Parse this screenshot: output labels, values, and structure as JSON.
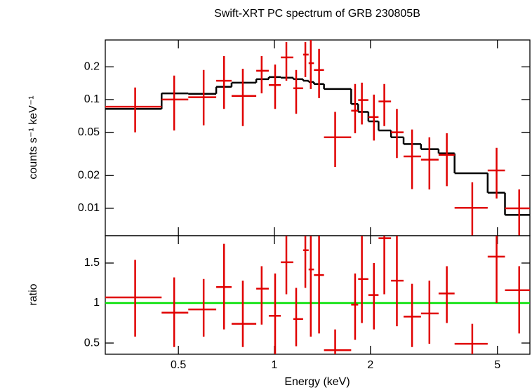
{
  "chart_data": [
    {
      "type": "scatter",
      "title": "Swift-XRT PC spectrum of GRB 230805B",
      "ylabel": "counts s⁻¹ keV⁻¹",
      "xlog": true,
      "ylog": true,
      "xlim": [
        0.295,
        6.32
      ],
      "ylim": [
        0.0056,
        0.353
      ],
      "xticks": [
        0.5,
        1,
        2,
        5
      ],
      "yticks": [
        0.01,
        0.02,
        0.05,
        0.1,
        0.2
      ],
      "data": {
        "color": "#e00000",
        "x": [
          0.366,
          0.485,
          0.6,
          0.695,
          0.796,
          0.912,
          1.005,
          1.09,
          1.17,
          1.25,
          1.3,
          1.38,
          1.55,
          1.79,
          1.88,
          2.05,
          2.21,
          2.42,
          2.7,
          3.06,
          3.47,
          4.17,
          4.97,
          5.85
        ],
        "xmin": [
          0.295,
          0.443,
          0.537,
          0.657,
          0.734,
          0.877,
          0.96,
          1.047,
          1.146,
          1.23,
          1.28,
          1.33,
          1.43,
          1.74,
          1.83,
          1.97,
          2.12,
          2.32,
          2.54,
          2.88,
          3.27,
          3.67,
          4.66,
          5.28
        ],
        "xmax": [
          0.443,
          0.537,
          0.657,
          0.734,
          0.877,
          0.96,
          1.047,
          1.146,
          1.23,
          1.28,
          1.33,
          1.43,
          1.74,
          1.83,
          1.97,
          2.12,
          2.32,
          2.54,
          2.88,
          3.27,
          3.67,
          4.66,
          5.28,
          6.32
        ],
        "values": [
          0.086,
          0.1,
          0.105,
          0.149,
          0.108,
          0.184,
          0.136,
          0.244,
          0.127,
          0.259,
          0.216,
          0.187,
          0.045,
          0.079,
          0.099,
          0.069,
          0.096,
          0.05,
          0.03,
          0.028,
          0.031,
          0.0101,
          0.0223,
          0.01
        ],
        "ylow": [
          0.05,
          0.052,
          0.058,
          0.082,
          0.057,
          0.114,
          0.082,
          0.149,
          0.074,
          0.161,
          0.125,
          0.103,
          0.024,
          0.049,
          0.059,
          0.042,
          0.057,
          0.029,
          0.015,
          0.0149,
          0.016,
          0.0056,
          0.0123,
          0.0056
        ],
        "yhigh": [
          0.129,
          0.166,
          0.187,
          0.251,
          0.192,
          0.251,
          0.21,
          0.338,
          0.187,
          0.338,
          0.364,
          0.292,
          0.077,
          0.139,
          0.143,
          0.111,
          0.139,
          0.082,
          0.053,
          0.045,
          0.049,
          0.0173,
          0.036,
          0.0149
        ]
      },
      "model": {
        "color": "#000000",
        "values": [
          0.082,
          0.114,
          0.113,
          0.131,
          0.143,
          0.154,
          0.161,
          0.159,
          0.154,
          0.149,
          0.145,
          0.139,
          0.125,
          0.091,
          0.077,
          0.063,
          0.052,
          0.045,
          0.039,
          0.035,
          0.032,
          0.021,
          0.0139,
          0.0087
        ]
      }
    },
    {
      "type": "scatter",
      "xlabel": "Energy (keV)",
      "ylabel": "ratio",
      "xlog": true,
      "ylog": false,
      "xlim": [
        0.295,
        6.32
      ],
      "ylim": [
        0.36,
        1.842
      ],
      "xticks": [
        0.5,
        1,
        2,
        5
      ],
      "yticks": [
        0.5,
        1,
        1.5
      ],
      "data": {
        "color": "#e00000",
        "x": [
          0.366,
          0.485,
          0.6,
          0.695,
          0.796,
          0.912,
          1.005,
          1.09,
          1.17,
          1.25,
          1.3,
          1.38,
          1.55,
          1.79,
          1.88,
          2.05,
          2.21,
          2.42,
          2.7,
          3.06,
          3.47,
          4.17,
          4.97,
          5.85
        ],
        "xmin": [
          0.295,
          0.443,
          0.537,
          0.657,
          0.734,
          0.877,
          0.96,
          1.047,
          1.146,
          1.23,
          1.28,
          1.33,
          1.43,
          1.74,
          1.83,
          1.97,
          2.12,
          2.32,
          2.54,
          2.88,
          3.27,
          3.67,
          4.66,
          5.28
        ],
        "xmax": [
          0.443,
          0.537,
          0.657,
          0.734,
          0.877,
          0.96,
          1.047,
          1.146,
          1.23,
          1.28,
          1.33,
          1.43,
          1.74,
          1.83,
          1.97,
          2.12,
          2.32,
          2.54,
          2.88,
          3.27,
          3.67,
          4.66,
          5.28,
          6.32
        ],
        "values": [
          1.07,
          0.88,
          0.92,
          1.2,
          0.74,
          1.18,
          0.84,
          1.51,
          0.8,
          1.66,
          1.42,
          1.35,
          0.41,
          0.98,
          1.3,
          1.1,
          1.81,
          1.28,
          0.83,
          0.87,
          1.12,
          0.49,
          1.58,
          1.16
        ],
        "ylow": [
          0.58,
          0.45,
          0.58,
          0.67,
          0.45,
          0.73,
          0.36,
          1.11,
          0.46,
          1.19,
          0.58,
          0.62,
          0.36,
          0.54,
          0.75,
          0.67,
          1.11,
          0.71,
          0.45,
          0.49,
          0.75,
          0.36,
          1.0,
          0.62
        ],
        "yhigh": [
          1.54,
          1.32,
          1.3,
          1.74,
          1.28,
          1.46,
          1.37,
          1.84,
          1.19,
          1.84,
          1.84,
          1.84,
          0.67,
          1.37,
          1.84,
          1.5,
          1.84,
          1.84,
          1.24,
          1.28,
          1.46,
          0.74,
          1.84,
          1.46
        ]
      },
      "reference": {
        "value": 1,
        "color": "#00e000"
      }
    }
  ]
}
